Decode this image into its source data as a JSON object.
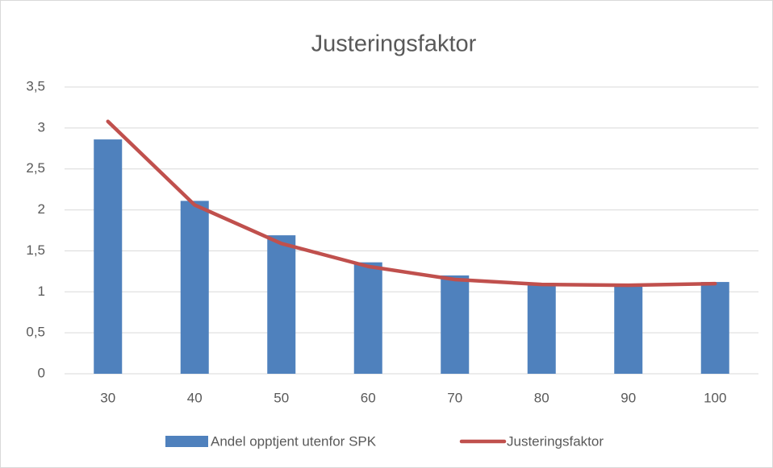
{
  "chart_data": {
    "type": "bar_line",
    "title": "Justeringsfaktor",
    "categories": [
      "30",
      "40",
      "50",
      "60",
      "70",
      "80",
      "90",
      "100"
    ],
    "series": [
      {
        "name": "Andel opptjent utenfor SPK",
        "type": "bar",
        "color": "#4f81bd",
        "values": [
          2.86,
          2.11,
          1.69,
          1.36,
          1.2,
          1.09,
          1.08,
          1.12
        ]
      },
      {
        "name": "Justeringsfaktor",
        "type": "line",
        "color": "#c0504d",
        "values": [
          3.08,
          2.06,
          1.59,
          1.31,
          1.15,
          1.09,
          1.08,
          1.1
        ]
      }
    ],
    "ylim": [
      0,
      3.5
    ],
    "yticks": [
      0,
      {
        "value": 0.5,
        "label": "0,5"
      },
      1,
      {
        "value": 1.5,
        "label": "1,5"
      },
      2,
      {
        "value": 2.5,
        "label": "2,5"
      },
      3,
      {
        "value": 3.5,
        "label": "3,5"
      }
    ],
    "grid": true,
    "legend": "bottom"
  }
}
